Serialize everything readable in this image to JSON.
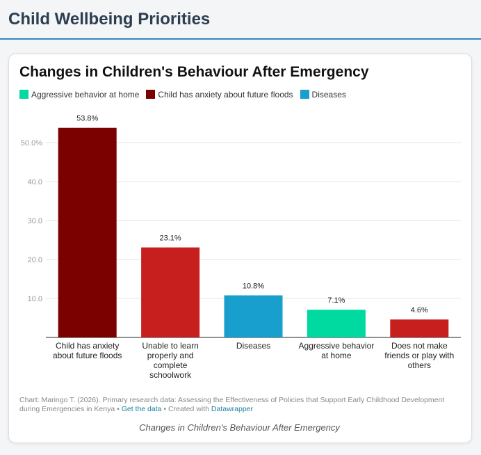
{
  "page_title": "Child Wellbeing Priorities",
  "chart_data": {
    "type": "bar",
    "title": "Changes in Children's Behaviour After Emergency",
    "legend": [
      {
        "name": "Aggressive behavior at home",
        "color": "#00d9a0"
      },
      {
        "name": "Child has anxiety about future floods",
        "color": "#7b0000"
      },
      {
        "name": "Diseases",
        "color": "#189fcd"
      }
    ],
    "categories": [
      "Child has anxiety about future floods",
      "Unable to learn properly and complete schoolwork",
      "Diseases",
      "Aggressive behavior at home",
      "Does not make friends or play with others"
    ],
    "values": [
      53.8,
      23.1,
      10.8,
      7.1,
      4.6
    ],
    "value_labels": [
      "53.8%",
      "23.1%",
      "10.8%",
      "7.1%",
      "4.6%"
    ],
    "colors": [
      "#7b0000",
      "#c71e1e",
      "#189fcd",
      "#00d9a0",
      "#c71e1e"
    ],
    "ylim": [
      0,
      55
    ],
    "yticks": [
      {
        "value": 10,
        "label": "10.0"
      },
      {
        "value": 20,
        "label": "20.0"
      },
      {
        "value": 30,
        "label": "30.0"
      },
      {
        "value": 40,
        "label": "40.0"
      },
      {
        "value": 50,
        "label": "50.0%"
      }
    ],
    "grid": true,
    "footer": {
      "source": "Chart: Maringo T. (2026). Primary research data: Assessing the Effectiveness of Policies that Support Early Childhood Development during Emergencies in Kenya",
      "separator": "•",
      "get_data": "Get the data",
      "created_with": "Created with",
      "tool": "Datawrapper"
    },
    "caption": "Changes in Children's Behaviour After Emergency"
  }
}
